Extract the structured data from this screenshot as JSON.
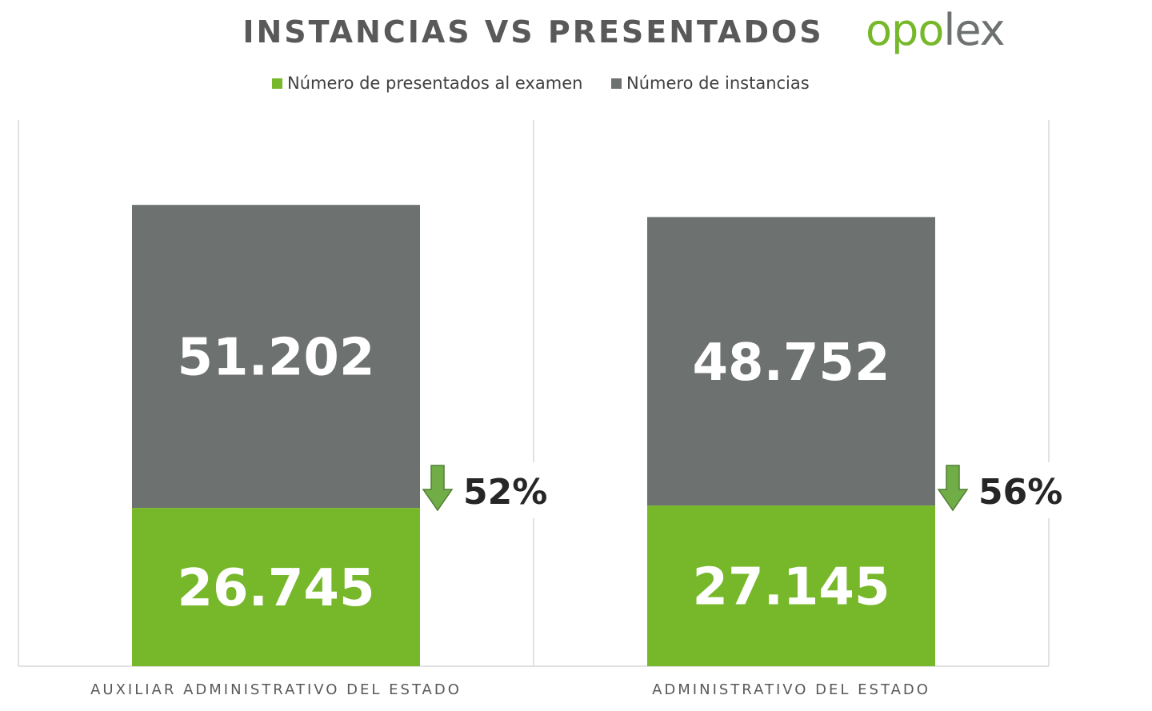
{
  "header": {
    "title": "INSTANCIAS VS PRESENTADOS",
    "logo_part1": "opo",
    "logo_part2": "lex"
  },
  "colors": {
    "presentados": "#76b82a",
    "instancias": "#6d7170",
    "arrow": "#70ad47",
    "axis": "#d9d9d9",
    "pct_text": "#262626"
  },
  "chart_data": {
    "type": "bar",
    "stacked": true,
    "categories": [
      "AUXILIAR ADMINISTRATIVO DEL ESTADO",
      "ADMINISTRATIVO DEL ESTADO"
    ],
    "series": [
      {
        "name": "Número de presentados al examen",
        "values": [
          26745,
          27145
        ],
        "labels": [
          "26.745",
          "27.145"
        ]
      },
      {
        "name": "Número de instancias",
        "values": [
          51202,
          48752
        ],
        "labels": [
          "51.202",
          "48.752"
        ]
      }
    ],
    "annotations": [
      "52%",
      "56%"
    ],
    "legend": "top-center",
    "grid": false
  }
}
